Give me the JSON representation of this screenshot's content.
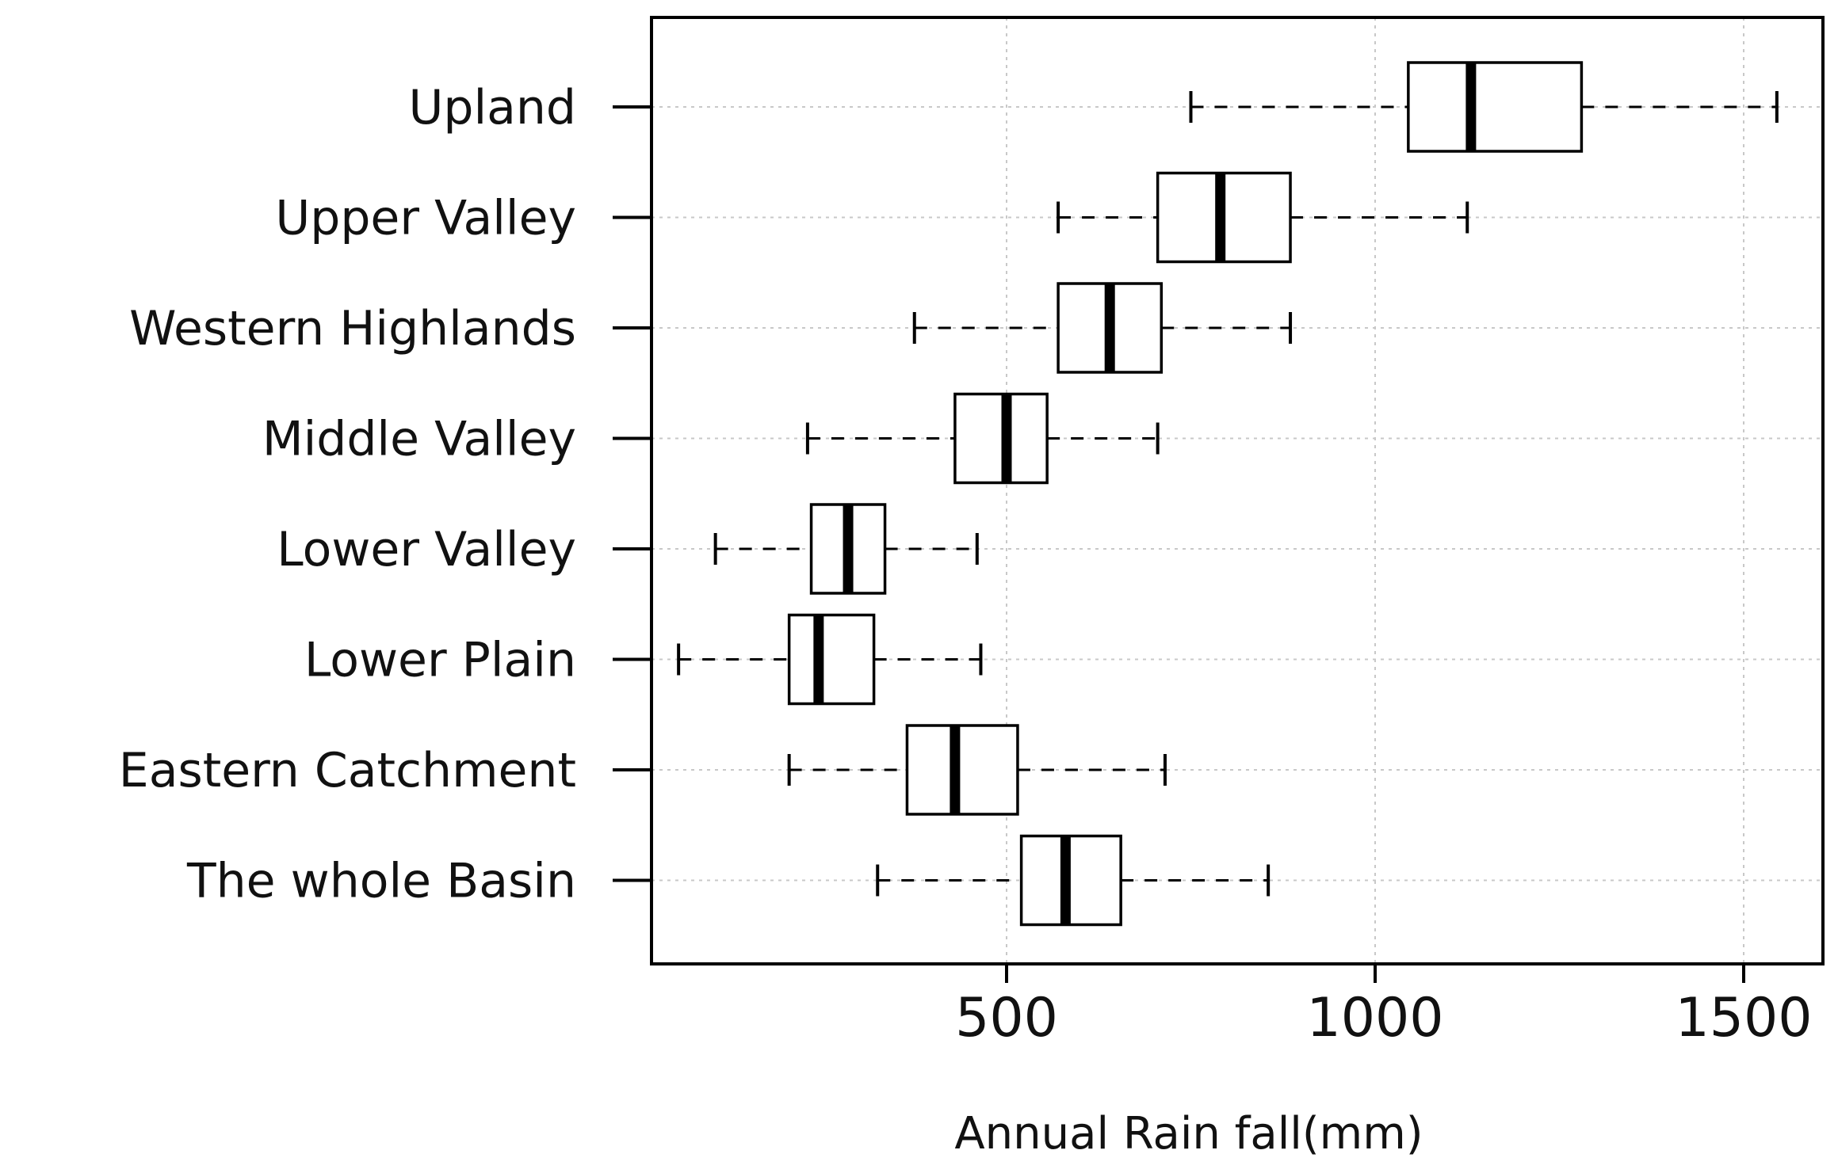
{
  "chart_data": {
    "type": "boxplot",
    "orientation": "horizontal",
    "xlabel": "Annual Rain fall(mm)",
    "ylabel": "",
    "xlim": [
      20,
      1600
    ],
    "xticks": [
      500,
      1000,
      1500
    ],
    "xtick_labels": [
      "500",
      "1000",
      "1500"
    ],
    "grid": true,
    "categories": [
      "Upland",
      "Upper Valley",
      "Western Highlands",
      "Middle Valley",
      "Lower Valley",
      "Lower Plain",
      "Eastern Catchment",
      "The whole Basin"
    ],
    "boxes": [
      {
        "label": "Upland",
        "min": 750,
        "q1": 1045,
        "median": 1130,
        "q3": 1280,
        "max": 1545
      },
      {
        "label": "Upper Valley",
        "min": 570,
        "q1": 705,
        "median": 790,
        "q3": 885,
        "max": 1125
      },
      {
        "label": "Western Highlands",
        "min": 375,
        "q1": 570,
        "median": 640,
        "q3": 710,
        "max": 885
      },
      {
        "label": "Middle Valley",
        "min": 230,
        "q1": 430,
        "median": 500,
        "q3": 555,
        "max": 705
      },
      {
        "label": "Lower Valley",
        "min": 105,
        "q1": 235,
        "median": 285,
        "q3": 335,
        "max": 460
      },
      {
        "label": "Lower Plain",
        "min": 55,
        "q1": 205,
        "median": 245,
        "q3": 320,
        "max": 465
      },
      {
        "label": "Eastern Catchment",
        "min": 205,
        "q1": 365,
        "median": 430,
        "q3": 515,
        "max": 715
      },
      {
        "label": "The whole Basin",
        "min": 325,
        "q1": 520,
        "median": 580,
        "q3": 655,
        "max": 855
      }
    ]
  }
}
